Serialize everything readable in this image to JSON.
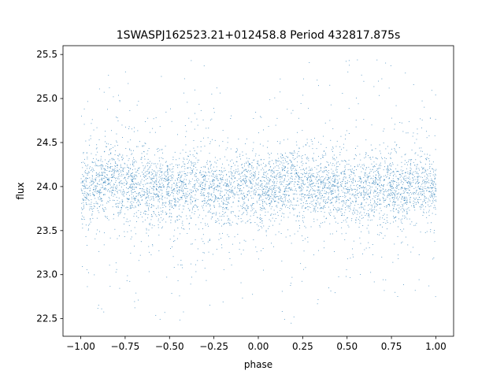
{
  "chart_data": {
    "type": "scatter",
    "title": "1SWASPJ162523.21+012458.8 Period 432817.875s",
    "xlabel": "phase",
    "ylabel": "flux",
    "xlim": [
      -1.1,
      1.1
    ],
    "ylim": [
      22.3,
      25.6
    ],
    "xticks": [
      -1.0,
      -0.75,
      -0.5,
      -0.25,
      0.0,
      0.25,
      0.5,
      0.75,
      1.0
    ],
    "xtick_labels": [
      "−1.00",
      "−0.75",
      "−0.50",
      "−0.25",
      "0.00",
      "0.25",
      "0.50",
      "0.75",
      "1.00"
    ],
    "yticks": [
      22.5,
      23.0,
      23.5,
      24.0,
      24.5,
      25.0,
      25.5
    ],
    "ytick_labels": [
      "22.5",
      "23.0",
      "23.5",
      "24.0",
      "24.5",
      "25.0",
      "25.5"
    ],
    "grid": false,
    "legend": "none",
    "marker_color": "#1f77b4",
    "series": [
      {
        "description": "dense cloud of photometric points folded on phase, repeated over two cycles",
        "x_range": [
          -1.0,
          1.0
        ],
        "y_center": 24.0,
        "y_core_range": [
          23.6,
          24.5
        ],
        "y_full_range": [
          22.45,
          25.45
        ],
        "peaks_at_phase": [
          -0.83,
          0.17
        ],
        "dips_at_phase": [
          -0.45,
          -0.2,
          0.0,
          0.55,
          0.8
        ],
        "sample_x": [
          -1.0,
          -0.9,
          -0.83,
          -0.75,
          -0.65,
          -0.55,
          -0.45,
          -0.35,
          -0.25,
          -0.15,
          -0.05,
          0.0,
          0.1,
          0.17,
          0.25,
          0.35,
          0.45,
          0.55,
          0.65,
          0.75,
          0.85,
          0.95,
          1.0
        ],
        "sample_y": [
          24.0,
          23.95,
          24.1,
          24.0,
          23.95,
          24.0,
          23.9,
          23.95,
          23.95,
          24.0,
          24.0,
          23.95,
          24.0,
          24.1,
          24.0,
          23.95,
          24.0,
          23.9,
          23.95,
          24.0,
          23.95,
          24.0,
          24.0
        ]
      }
    ]
  }
}
